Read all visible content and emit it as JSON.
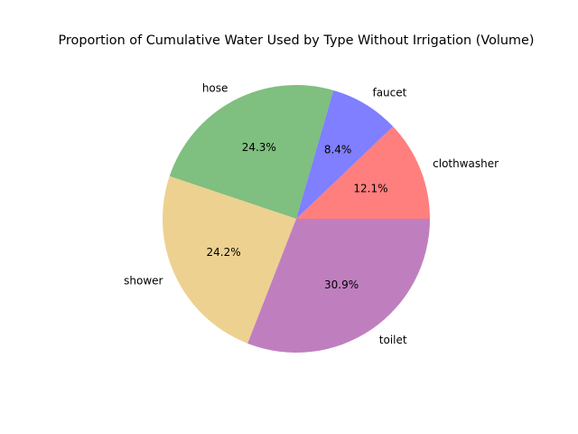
{
  "chart_data": {
    "type": "pie",
    "title": "Proportion of Cumulative Water Used by Type Without Irrigation (Volume)",
    "start_angle_deg": 0,
    "direction": "counterclockwise",
    "slices": [
      {
        "label": "clothwasher",
        "value": 12.1,
        "pct_label": "12.1%",
        "color": "#ff7f7f"
      },
      {
        "label": "faucet",
        "value": 8.4,
        "pct_label": "8.4%",
        "color": "#7f7fff"
      },
      {
        "label": "hose",
        "value": 24.3,
        "pct_label": "24.3%",
        "color": "#7fbf7f"
      },
      {
        "label": "shower",
        "value": 24.2,
        "pct_label": "24.2%",
        "color": "#edd190"
      },
      {
        "label": "toilet",
        "value": 30.9,
        "pct_label": "30.9%",
        "color": "#bf7fbf"
      }
    ]
  }
}
